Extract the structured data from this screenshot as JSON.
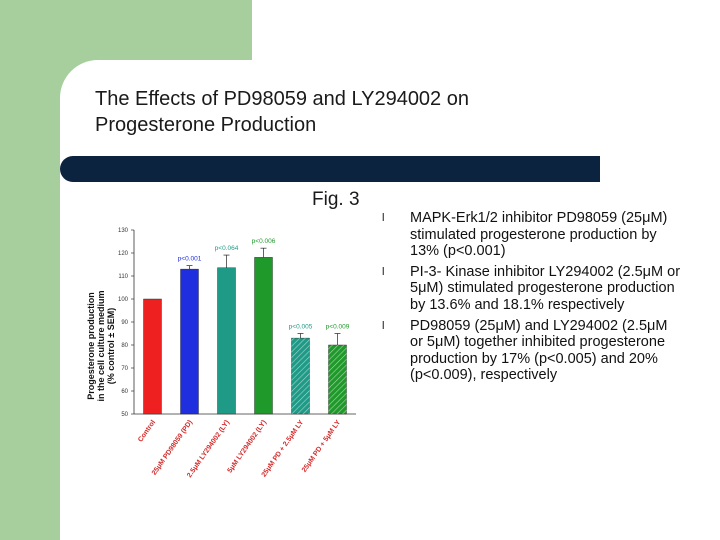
{
  "slide": {
    "title_line1": "The Effects of PD98059 and LY294002 on",
    "title_line2": "Progesterone Production",
    "fig_label": "Fig. 3"
  },
  "bullets": [
    "MAPK-Erk1/2 inhibitor PD98059 (25μM) stimulated progesterone production by 13% (p<0.001)",
    "PI-3- Kinase inhibitor LY294002 (2.5μM or 5μM) stimulated progesterone production by 13.6%  and 18.1% respectively",
    "PD98059 (25μM) and LY294002 (2.5μM or 5μM) together inhibited progesterone production by 17% (p<0.005) and 20% (p<0.009), respectively"
  ],
  "colors": {
    "green_panel": "#a7cf9e",
    "title_bar": "#0c2340",
    "bar_red": "#ef2020",
    "bar_blue": "#1f2fe0",
    "bar_teal": "#1f9a86",
    "bar_green": "#1f9a2a"
  },
  "chart_data": {
    "type": "bar",
    "ylabel_line1": "Progesterone production",
    "ylabel_line2": "in the cell culture medium",
    "ylabel_line3": "(% control ± SEM)",
    "ylim": [
      50,
      130
    ],
    "yticks": [
      50,
      60,
      70,
      80,
      90,
      100,
      110,
      120,
      130
    ],
    "categories": [
      "Control",
      "25μM PD98059 (PD)",
      "2.5μM LY294002 (LY)",
      "5μM LY294002 (LY)",
      "25μM PD + 2.5μM LY",
      "25μM PD + 5μM LY"
    ],
    "values": [
      100,
      113,
      113.6,
      118.1,
      83,
      80
    ],
    "errors": [
      0,
      1.5,
      5.5,
      4,
      2,
      5
    ],
    "bar_colors": [
      "#ef2020",
      "#1f2fe0",
      "#1f9a86",
      "#1f9a2a",
      "#1f9a86",
      "#1f9a2a"
    ],
    "bar_hatch": [
      false,
      false,
      false,
      false,
      true,
      true
    ],
    "annotations": [
      "",
      "p<0.001",
      "p<0.064",
      "p<0.006",
      "p<0.005",
      "p<0.009"
    ]
  }
}
